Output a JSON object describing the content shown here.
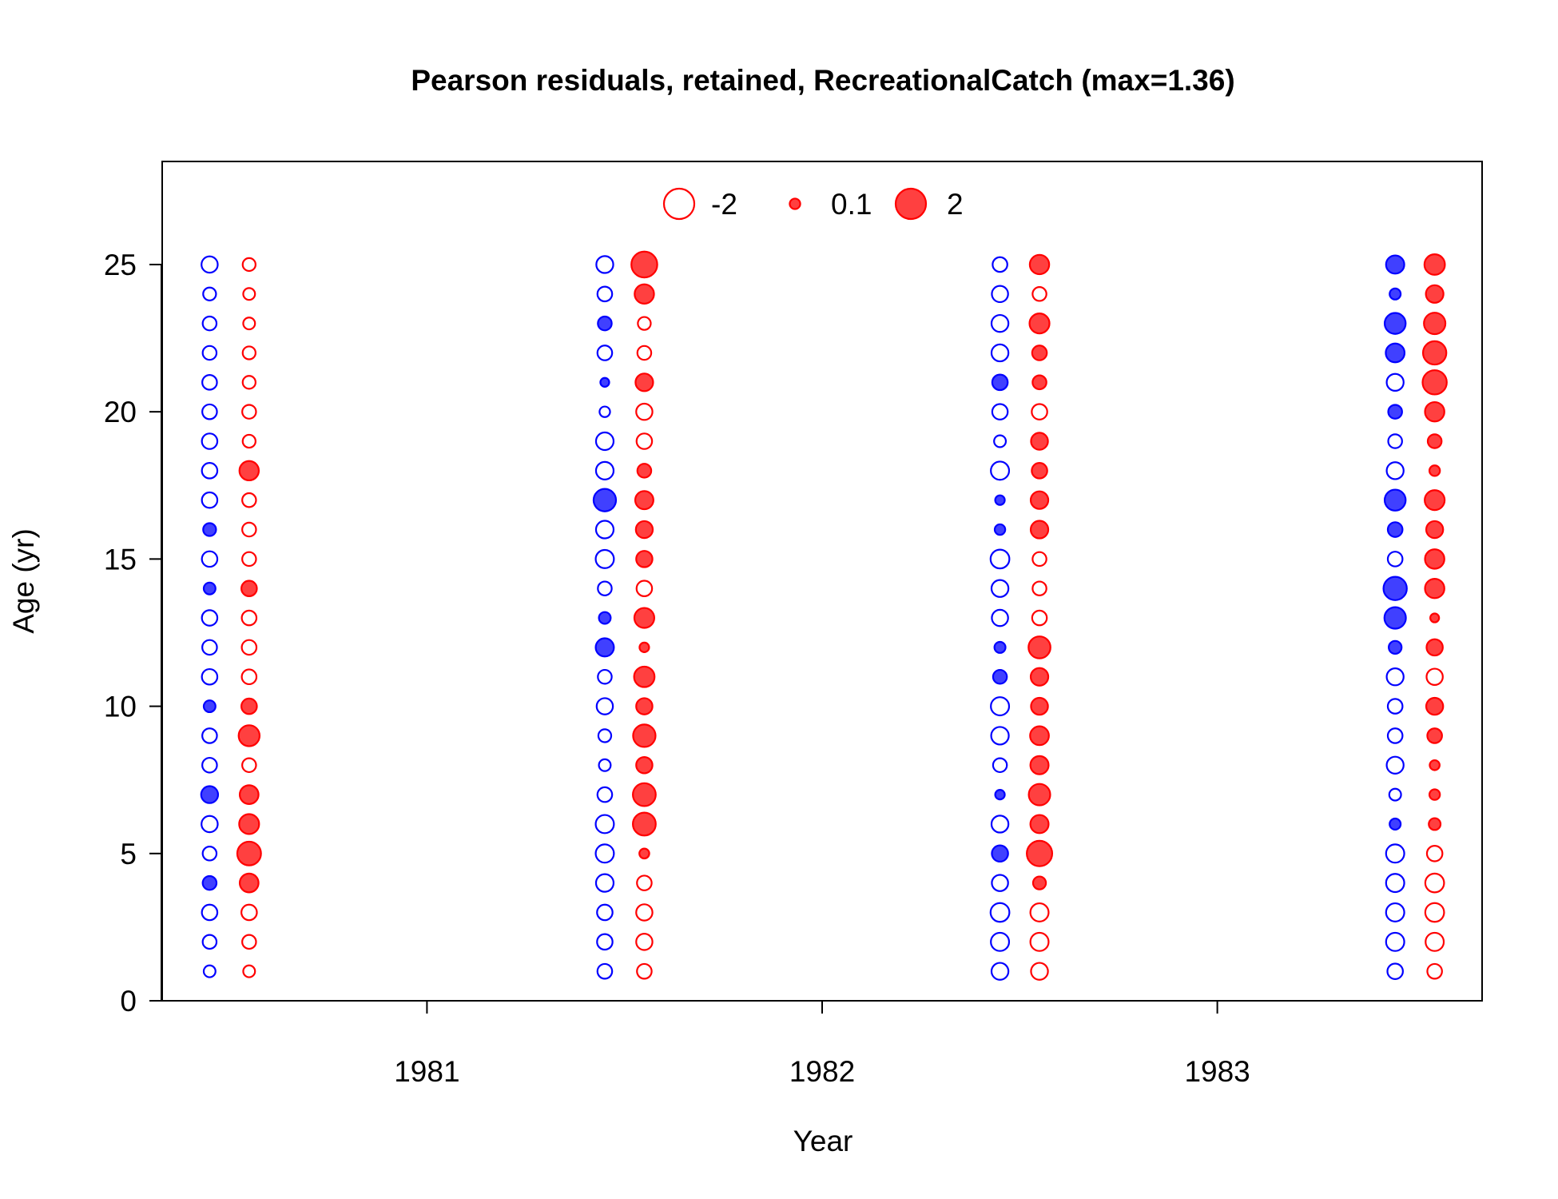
{
  "chart_data": {
    "type": "scatter",
    "title": "Pearson residuals, retained, RecreationalCatch (max=1.36)",
    "xlabel": "Year",
    "ylabel": "Age (yr)",
    "xlim": [
      1980.33,
      1983.67
    ],
    "ylim": [
      0,
      28.5
    ],
    "x_ticks": [
      1981,
      1982,
      1983
    ],
    "y_ticks": [
      0,
      5,
      10,
      15,
      20,
      25
    ],
    "grid": false,
    "colors": {
      "negative": "#0000FF",
      "positive": "#FF0000"
    },
    "legend": {
      "position": "top-center",
      "entries": [
        {
          "label": "-2",
          "value": -2
        },
        {
          "label": "0.1",
          "value": 0.1
        },
        {
          "label": "2",
          "value": 2
        }
      ]
    },
    "series": [
      {
        "x": 1980.45,
        "ages": [
          1,
          2,
          3,
          4,
          5,
          6,
          7,
          8,
          9,
          10,
          11,
          12,
          13,
          14,
          15,
          16,
          17,
          18,
          19,
          20,
          21,
          22,
          23,
          24,
          25
        ],
        "values": [
          -0.15,
          -0.25,
          -0.35,
          0.25,
          -0.25,
          -0.4,
          0.45,
          -0.3,
          -0.3,
          0.15,
          -0.35,
          -0.3,
          -0.35,
          0.15,
          -0.35,
          0.2,
          -0.35,
          -0.35,
          -0.35,
          -0.3,
          -0.3,
          -0.25,
          -0.25,
          -0.2,
          -0.4
        ]
      },
      {
        "x": 1980.55,
        "ages": [
          1,
          2,
          3,
          4,
          5,
          6,
          7,
          8,
          9,
          10,
          11,
          12,
          13,
          14,
          15,
          16,
          17,
          18,
          19,
          20,
          21,
          22,
          23,
          24,
          25
        ],
        "values": [
          -0.15,
          -0.25,
          -0.35,
          0.6,
          1.1,
          0.7,
          0.6,
          -0.25,
          0.8,
          0.35,
          -0.3,
          -0.3,
          -0.3,
          0.35,
          -0.25,
          -0.25,
          -0.25,
          0.65,
          -0.2,
          -0.25,
          -0.2,
          -0.2,
          -0.15,
          -0.15,
          -0.2
        ]
      },
      {
        "x": 1981.45,
        "ages": [
          1,
          2,
          3,
          4,
          5,
          6,
          7,
          8,
          9,
          10,
          11,
          12,
          13,
          14,
          15,
          16,
          17,
          18,
          19,
          20,
          21,
          22,
          23,
          24,
          25
        ],
        "values": [
          -0.3,
          -0.35,
          -0.35,
          -0.5,
          -0.55,
          -0.55,
          -0.3,
          -0.15,
          -0.2,
          -0.4,
          -0.25,
          0.55,
          0.15,
          -0.25,
          -0.55,
          -0.5,
          0.95,
          -0.5,
          -0.5,
          -0.1,
          0.05,
          -0.3,
          0.25,
          -0.3,
          -0.45
        ]
      },
      {
        "x": 1981.55,
        "ages": [
          1,
          2,
          3,
          4,
          5,
          6,
          7,
          8,
          9,
          10,
          11,
          12,
          13,
          14,
          15,
          16,
          17,
          18,
          19,
          20,
          21,
          22,
          23,
          24,
          25
        ],
        "values": [
          -0.3,
          -0.4,
          -0.4,
          -0.3,
          0.08,
          1.0,
          1.0,
          0.4,
          0.95,
          0.4,
          0.75,
          0.07,
          0.7,
          -0.35,
          0.4,
          0.45,
          0.55,
          0.25,
          -0.35,
          -0.4,
          0.5,
          -0.25,
          -0.2,
          0.65,
          1.36
        ]
      },
      {
        "x": 1982.45,
        "ages": [
          1,
          2,
          3,
          4,
          5,
          6,
          7,
          8,
          9,
          10,
          11,
          12,
          13,
          14,
          15,
          16,
          17,
          18,
          19,
          20,
          21,
          22,
          23,
          24,
          25
        ],
        "values": [
          -0.45,
          -0.55,
          -0.6,
          -0.4,
          0.4,
          -0.45,
          0.07,
          -0.25,
          -0.5,
          -0.55,
          0.25,
          0.12,
          -0.4,
          -0.45,
          -0.6,
          0.1,
          0.07,
          -0.55,
          -0.15,
          -0.35,
          0.35,
          -0.45,
          -0.45,
          -0.4,
          -0.3
        ]
      },
      {
        "x": 1982.55,
        "ages": [
          1,
          2,
          3,
          4,
          5,
          6,
          7,
          8,
          9,
          10,
          11,
          12,
          13,
          14,
          15,
          16,
          17,
          18,
          19,
          20,
          21,
          22,
          23,
          24,
          25
        ],
        "values": [
          -0.45,
          -0.55,
          -0.55,
          0.2,
          1.3,
          0.55,
          0.85,
          0.55,
          0.6,
          0.45,
          0.5,
          0.9,
          -0.3,
          -0.25,
          -0.25,
          0.5,
          0.5,
          0.35,
          0.45,
          -0.35,
          0.25,
          0.3,
          0.7,
          -0.25,
          0.65
        ]
      },
      {
        "x": 1983.45,
        "ages": [
          1,
          2,
          3,
          4,
          5,
          6,
          7,
          8,
          9,
          10,
          11,
          12,
          13,
          14,
          15,
          16,
          17,
          18,
          19,
          20,
          21,
          22,
          23,
          24,
          25
        ],
        "values": [
          -0.35,
          -0.55,
          -0.55,
          -0.55,
          -0.55,
          0.12,
          -0.15,
          -0.45,
          -0.3,
          -0.3,
          -0.45,
          0.2,
          0.85,
          1.05,
          -0.3,
          0.3,
          0.8,
          -0.45,
          -0.25,
          0.25,
          -0.45,
          0.6,
          0.8,
          0.12,
          0.55
        ]
      },
      {
        "x": 1983.55,
        "ages": [
          1,
          2,
          3,
          4,
          5,
          6,
          7,
          8,
          9,
          10,
          11,
          12,
          13,
          14,
          15,
          16,
          17,
          18,
          19,
          20,
          21,
          22,
          23,
          24,
          25
        ],
        "values": [
          -0.3,
          -0.55,
          -0.6,
          -0.6,
          -0.35,
          0.15,
          0.1,
          0.08,
          0.3,
          0.45,
          -0.4,
          0.4,
          0.05,
          0.65,
          0.65,
          0.45,
          0.7,
          0.1,
          0.25,
          0.65,
          1.15,
          1.05,
          0.85,
          0.5,
          0.75
        ]
      }
    ]
  }
}
